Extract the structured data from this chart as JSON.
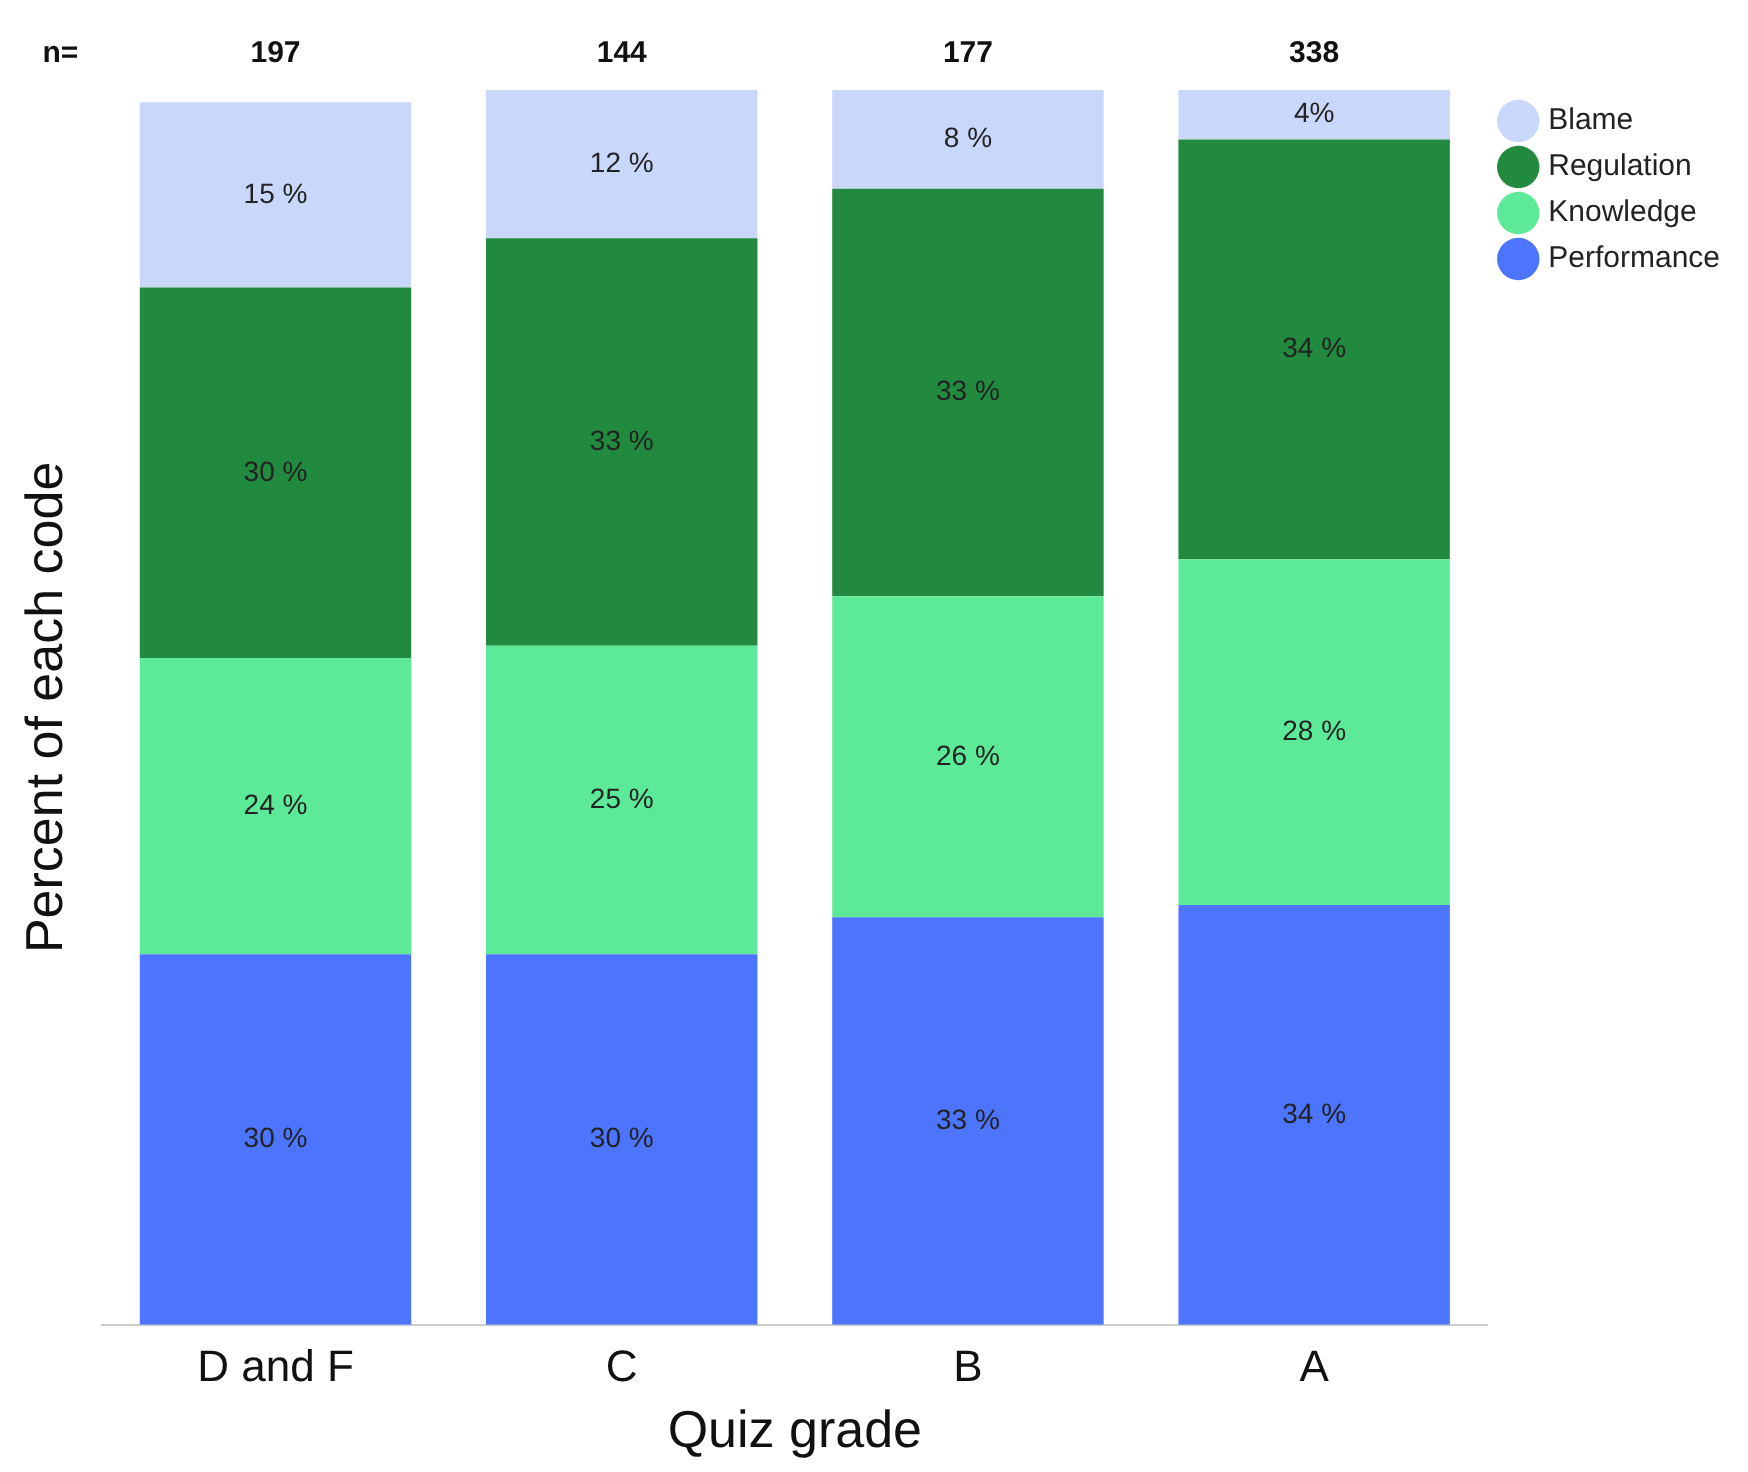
{
  "chart_data": {
    "type": "bar",
    "stacked": true,
    "xlabel": "Quiz grade",
    "ylabel": "Percent of each code",
    "categories": [
      "D and F",
      "C",
      "B",
      "A"
    ],
    "series": [
      {
        "name": "Performance",
        "color": "#4c74fc",
        "values": [
          30,
          30,
          33,
          34
        ],
        "value_labels": [
          "30 %",
          "30 %",
          "33 %",
          "34 %"
        ]
      },
      {
        "name": "Knowledge",
        "color": "#5dea98",
        "values": [
          24,
          25,
          26,
          28
        ],
        "value_labels": [
          "24 %",
          "25 %",
          "26 %",
          "28 %"
        ]
      },
      {
        "name": "Regulation",
        "color": "#218a3e",
        "values": [
          30,
          33,
          33,
          34
        ],
        "value_labels": [
          "30 %",
          "33 %",
          "33 %",
          "34 %"
        ]
      },
      {
        "name": "Blame",
        "color": "#c9d7fb",
        "values": [
          15,
          12,
          8,
          4
        ],
        "value_labels": [
          "15 %",
          "12 %",
          "8 %",
          "4%"
        ]
      }
    ],
    "annotations": [
      "n=",
      "197",
      "144",
      "177",
      "338"
    ],
    "grid": false,
    "legend": "top right"
  }
}
